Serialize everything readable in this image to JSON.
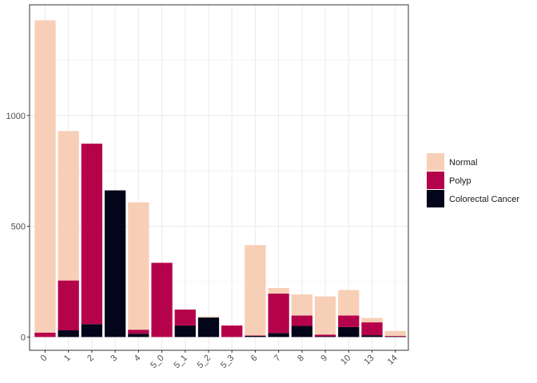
{
  "chart_data": {
    "type": "bar",
    "stacked": true,
    "title": "",
    "xlabel": "",
    "ylabel": "",
    "categories": [
      "0",
      "1",
      "2",
      "3",
      "4",
      "5_0",
      "5_1",
      "5_2",
      "5_3",
      "6",
      "7",
      "8",
      "9",
      "10",
      "13",
      "14"
    ],
    "series": [
      {
        "name": "Normal",
        "color": "#F7CFB6",
        "values": [
          1410,
          675,
          0,
          0,
          575,
          0,
          0,
          5,
          0,
          408,
          25,
          95,
          172,
          115,
          20,
          22
        ]
      },
      {
        "name": "Polyp",
        "color": "#B5034B",
        "values": [
          20,
          225,
          815,
          0,
          18,
          335,
          72,
          0,
          52,
          2,
          178,
          47,
          8,
          52,
          58,
          3
        ]
      },
      {
        "name": "Colorectal Cancer",
        "color": "#03051A",
        "values": [
          0,
          30,
          58,
          662,
          15,
          0,
          52,
          88,
          0,
          5,
          18,
          50,
          3,
          45,
          8,
          2
        ]
      }
    ],
    "y_ticks": [
      0,
      500,
      1000
    ],
    "ylim": [
      -60,
      1500
    ],
    "grid": true,
    "legend_position": "right"
  }
}
